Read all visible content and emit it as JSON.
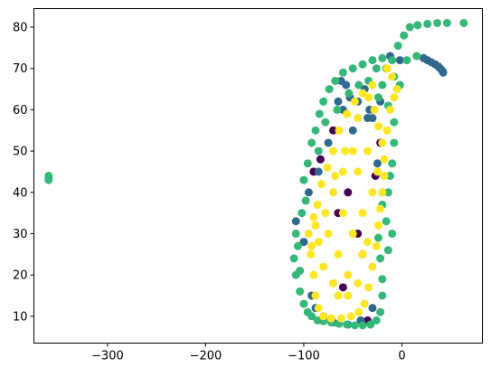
{
  "chart_data": {
    "type": "scatter",
    "title": "",
    "xlabel": "",
    "ylabel": "",
    "xlim": [
      -375,
      82
    ],
    "ylim": [
      3.5,
      84.5
    ],
    "xticks": [
      -300,
      -200,
      -100,
      0
    ],
    "xtick_labels": [
      "−300",
      "−200",
      "−100",
      "0"
    ],
    "yticks": [
      10,
      20,
      30,
      40,
      50,
      60,
      70,
      80
    ],
    "ytick_labels": [
      "10",
      "20",
      "30",
      "40",
      "50",
      "60",
      "70",
      "80"
    ],
    "grid": false,
    "legend": "none",
    "series": [
      {
        "color": "#440154",
        "points": [
          [
            -83,
            48
          ],
          [
            -22,
            52
          ],
          [
            -27,
            44
          ],
          [
            -80,
            10
          ],
          [
            -35,
            9
          ],
          [
            -60,
            17
          ],
          [
            -45,
            30
          ],
          [
            -90,
            45
          ],
          [
            -70,
            55
          ],
          [
            -55,
            40
          ],
          [
            -40,
            25
          ],
          [
            -65,
            35
          ]
        ]
      },
      {
        "color": "#31688e",
        "points": [
          [
            -62,
            67
          ],
          [
            -57,
            66
          ],
          [
            -65,
            62
          ],
          [
            -53,
            63
          ],
          [
            -38,
            65
          ],
          [
            -33,
            60
          ],
          [
            -30,
            58
          ],
          [
            -22,
            62
          ],
          [
            -12,
            73
          ],
          [
            -2,
            72
          ],
          [
            22,
            72.5
          ],
          [
            26,
            72
          ],
          [
            30,
            71.5
          ],
          [
            34,
            71
          ],
          [
            37,
            70.5
          ],
          [
            39,
            70
          ],
          [
            41,
            69.5
          ],
          [
            42,
            69
          ],
          [
            -108,
            33
          ],
          [
            -100,
            28
          ],
          [
            -92,
            15
          ],
          [
            -88,
            12
          ],
          [
            -80,
            9
          ],
          [
            -70,
            8.5
          ],
          [
            -55,
            8
          ],
          [
            -42,
            9
          ],
          [
            -30,
            12
          ],
          [
            -95,
            40
          ],
          [
            -85,
            45
          ],
          [
            -75,
            52
          ],
          [
            -60,
            60
          ],
          [
            -50,
            55
          ],
          [
            -45,
            62
          ],
          [
            -35,
            58
          ],
          [
            -25,
            47
          ],
          [
            -20,
            40
          ]
        ]
      },
      {
        "color": "#35b779",
        "points": [
          [
            -360,
            44
          ],
          [
            -360,
            43.5
          ],
          [
            -360,
            43
          ],
          [
            -4,
            75.5
          ],
          [
            2,
            78
          ],
          [
            8,
            80
          ],
          [
            16,
            80.5
          ],
          [
            26,
            80.8
          ],
          [
            36,
            81
          ],
          [
            46,
            81
          ],
          [
            63,
            81
          ],
          [
            -108,
            30
          ],
          [
            -110,
            24
          ],
          [
            -108,
            20
          ],
          [
            -104,
            16
          ],
          [
            -100,
            13
          ],
          [
            -96,
            11
          ],
          [
            -92,
            10
          ],
          [
            -86,
            9
          ],
          [
            -80,
            8.8
          ],
          [
            -72,
            8.5
          ],
          [
            -64,
            8.2
          ],
          [
            -56,
            8
          ],
          [
            -48,
            7.8
          ],
          [
            -40,
            7.8
          ],
          [
            -32,
            8
          ],
          [
            -26,
            9
          ],
          [
            -22,
            11
          ],
          [
            -20,
            15
          ],
          [
            -20,
            19
          ],
          [
            -22,
            24
          ],
          [
            -24,
            29
          ],
          [
            -14,
            26
          ],
          [
            -10,
            30
          ],
          [
            -16,
            33
          ],
          [
            -20,
            37
          ],
          [
            -14,
            40
          ],
          [
            -12,
            44
          ],
          [
            -10,
            47
          ],
          [
            -8,
            52
          ],
          [
            -8,
            57
          ],
          [
            -14,
            61
          ],
          [
            -20,
            66
          ],
          [
            -26,
            70
          ],
          [
            -16,
            70
          ],
          [
            -8,
            68
          ],
          [
            -2,
            66
          ],
          [
            -98,
            38
          ],
          [
            -100,
            43
          ],
          [
            -96,
            47
          ],
          [
            -92,
            52
          ],
          [
            -88,
            55
          ],
          [
            -84,
            59
          ],
          [
            -80,
            62
          ],
          [
            -74,
            65
          ],
          [
            -68,
            67
          ],
          [
            -60,
            69
          ],
          [
            -50,
            70
          ],
          [
            -40,
            71
          ],
          [
            -30,
            72
          ],
          [
            -20,
            72.5
          ],
          [
            -10,
            72
          ],
          [
            5,
            72
          ],
          [
            15,
            73
          ],
          [
            -102,
            35
          ],
          [
            -106,
            27
          ],
          [
            -104,
            21
          ],
          [
            -85,
            50
          ],
          [
            -78,
            57
          ],
          [
            -66,
            60
          ],
          [
            -54,
            64
          ],
          [
            -44,
            66
          ],
          [
            -34,
            67
          ],
          [
            -24,
            63
          ]
        ]
      },
      {
        "color": "#fde725",
        "points": [
          [
            -95,
            30
          ],
          [
            -93,
            25
          ],
          [
            -90,
            20
          ],
          [
            -88,
            15
          ],
          [
            -85,
            12
          ],
          [
            -80,
            10
          ],
          [
            -72,
            9.5
          ],
          [
            -62,
            9.5
          ],
          [
            -52,
            10
          ],
          [
            -44,
            11
          ],
          [
            -38,
            13
          ],
          [
            -34,
            17
          ],
          [
            -30,
            22
          ],
          [
            -26,
            27
          ],
          [
            -24,
            32
          ],
          [
            -22,
            36
          ],
          [
            -20,
            40
          ],
          [
            -18,
            44
          ],
          [
            -18,
            48
          ],
          [
            -20,
            52
          ],
          [
            -24,
            56
          ],
          [
            -28,
            60
          ],
          [
            -34,
            63
          ],
          [
            -40,
            64
          ],
          [
            -48,
            62
          ],
          [
            -56,
            59
          ],
          [
            -64,
            55
          ],
          [
            -70,
            50
          ],
          [
            -76,
            46
          ],
          [
            -82,
            42
          ],
          [
            -86,
            37
          ],
          [
            -90,
            34
          ],
          [
            -70,
            40
          ],
          [
            -60,
            35
          ],
          [
            -50,
            30
          ],
          [
            -40,
            25
          ],
          [
            -55,
            20
          ],
          [
            -65,
            25
          ],
          [
            -75,
            30
          ],
          [
            -45,
            45
          ],
          [
            -35,
            50
          ],
          [
            -50,
            50
          ],
          [
            -60,
            45
          ],
          [
            -30,
            40
          ],
          [
            -40,
            35
          ],
          [
            -55,
            15
          ],
          [
            -70,
            18
          ],
          [
            -80,
            22
          ],
          [
            -85,
            28
          ],
          [
            -78,
            35
          ],
          [
            -65,
            15
          ],
          [
            -45,
            18
          ],
          [
            -35,
            28
          ],
          [
            -25,
            45
          ],
          [
            -15,
            55
          ],
          [
            -12,
            60
          ],
          [
            -8,
            63
          ],
          [
            -5,
            65
          ],
          [
            -10,
            68
          ],
          [
            -15,
            70
          ],
          [
            -30,
            66
          ],
          [
            -45,
            58
          ],
          [
            -58,
            50
          ],
          [
            -68,
            44
          ],
          [
            -88,
            32
          ],
          [
            -92,
            27
          ]
        ]
      }
    ],
    "point_radius": 4.5
  }
}
